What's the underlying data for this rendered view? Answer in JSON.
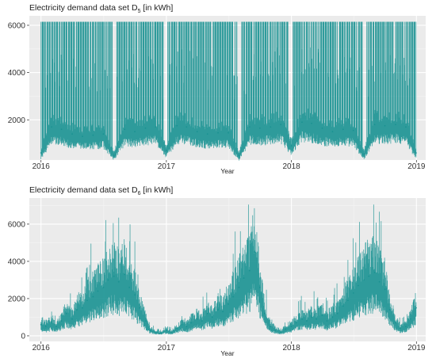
{
  "chart_data": [
    {
      "type": "line",
      "title_main": "Electricity demand data set D",
      "title_sub": "5",
      "title_unit": "[in kWh]",
      "xlabel": "Year",
      "ylabel": "",
      "x_ticks": [
        "2016",
        "2017",
        "2018",
        "2019"
      ],
      "y_ticks": [
        2000,
        4000,
        6000
      ],
      "xlim": [
        "2015-11-28",
        "2019-01-28"
      ],
      "ylim": [
        300,
        6400
      ],
      "grid": true,
      "color": "#1a9292",
      "pattern": "frequent spikes reaching a cap of about 6150 kWh, base load roughly 500-2500 kWh, short gaps in early Aug 2016, early Jan 2017, early Aug 2017, early Jan 2018 and early Aug 2018",
      "series": [
        {
          "x": [
            "2016-01-01",
            "2016-02-01",
            "2016-03-01",
            "2016-04-01",
            "2016-05-01",
            "2016-06-01",
            "2016-07-01",
            "2016-08-01",
            "2016-09-01",
            "2016-10-01",
            "2016-11-01",
            "2016-12-01",
            "2017-01-01",
            "2017-02-01",
            "2017-03-01",
            "2017-04-01",
            "2017-05-01",
            "2017-06-01",
            "2017-07-01",
            "2017-08-01",
            "2017-09-01",
            "2017-10-01",
            "2017-11-01",
            "2017-12-01",
            "2018-01-01",
            "2018-02-01",
            "2018-03-01",
            "2018-04-01",
            "2018-05-01",
            "2018-06-01",
            "2018-07-01",
            "2018-08-01",
            "2018-09-01",
            "2018-10-01",
            "2018-11-01",
            "2018-12-01",
            "2018-12-31"
          ],
          "y": [
            600,
            1700,
            1600,
            1400,
            1300,
            1350,
            1400,
            500,
            1600,
            1500,
            1650,
            1700,
            700,
            1750,
            1700,
            1500,
            1400,
            1450,
            1450,
            500,
            1700,
            1650,
            1700,
            1800,
            900,
            1900,
            1850,
            1650,
            1500,
            1600,
            1550,
            550,
            1800,
            1750,
            1800,
            1700,
            600
          ]
        }
      ]
    },
    {
      "type": "line",
      "title_main": "Electricity demand data set D",
      "title_sub": "6",
      "title_unit": "[in kWh]",
      "xlabel": "Year",
      "ylabel": "",
      "x_ticks": [
        "2016",
        "2017",
        "2018",
        "2019"
      ],
      "y_ticks": [
        0,
        2000,
        4000,
        6000
      ],
      "xlim": [
        "2015-11-28",
        "2019-01-28"
      ],
      "ylim": [
        -300,
        7400
      ],
      "grid": true,
      "color": "#1a9292",
      "series": [
        {
          "x": [
            "2016-01-01",
            "2016-01-15",
            "2016-02-01",
            "2016-02-15",
            "2016-03-01",
            "2016-03-15",
            "2016-04-01",
            "2016-04-15",
            "2016-05-01",
            "2016-05-15",
            "2016-06-01",
            "2016-06-15",
            "2016-07-01",
            "2016-07-15",
            "2016-08-01",
            "2016-08-15",
            "2016-09-01",
            "2016-09-15",
            "2016-10-01",
            "2016-10-15",
            "2016-11-01",
            "2016-11-15",
            "2016-12-01",
            "2016-12-15",
            "2017-01-01",
            "2017-01-15",
            "2017-02-01",
            "2017-02-15",
            "2017-03-01",
            "2017-03-15",
            "2017-04-01",
            "2017-04-15",
            "2017-05-01",
            "2017-05-15",
            "2017-06-01",
            "2017-06-15",
            "2017-07-01",
            "2017-07-15",
            "2017-08-01",
            "2017-08-15",
            "2017-09-01",
            "2017-09-15",
            "2017-10-01",
            "2017-10-15",
            "2017-11-01",
            "2017-11-15",
            "2017-12-01",
            "2017-12-15",
            "2018-01-01",
            "2018-01-15",
            "2018-02-01",
            "2018-02-15",
            "2018-03-01",
            "2018-03-15",
            "2018-04-01",
            "2018-04-15",
            "2018-05-01",
            "2018-05-15",
            "2018-06-01",
            "2018-06-15",
            "2018-07-01",
            "2018-07-15",
            "2018-08-01",
            "2018-08-15",
            "2018-09-01",
            "2018-09-15",
            "2018-10-01",
            "2018-10-15",
            "2018-11-01",
            "2018-11-15",
            "2018-12-01",
            "2018-12-15",
            "2018-12-31"
          ],
          "y": [
            600,
            500,
            700,
            500,
            800,
            1200,
            900,
            1400,
            1500,
            1900,
            2100,
            2400,
            2600,
            3000,
            3200,
            2900,
            3300,
            2600,
            2200,
            1500,
            800,
            300,
            200,
            150,
            300,
            200,
            400,
            600,
            500,
            700,
            900,
            800,
            1200,
            1000,
            1400,
            1300,
            1700,
            2100,
            2600,
            3100,
            3500,
            4500,
            2600,
            1200,
            500,
            300,
            200,
            350,
            500,
            700,
            900,
            800,
            1000,
            900,
            1100,
            800,
            1000,
            1200,
            1600,
            1900,
            2300,
            2700,
            3000,
            3200,
            3400,
            2900,
            2500,
            1400,
            700,
            400,
            500,
            900,
            1500
          ]
        }
      ]
    }
  ]
}
